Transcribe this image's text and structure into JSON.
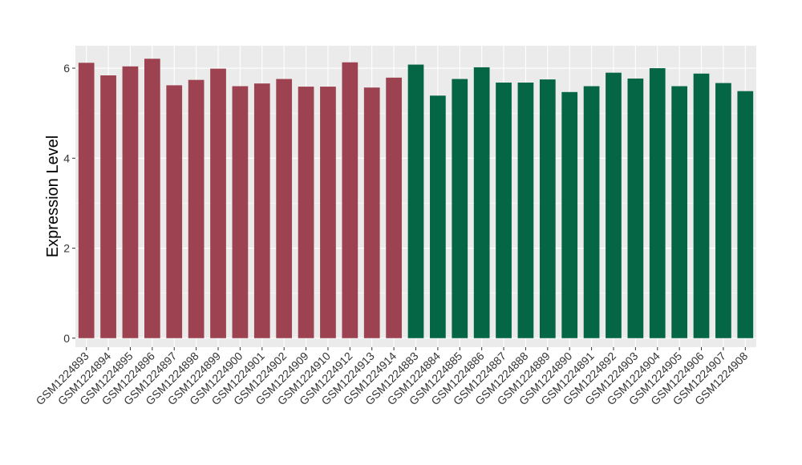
{
  "chart_data": {
    "type": "bar",
    "title": "",
    "xlabel": "",
    "ylabel": "Expression Level",
    "ylim": [
      -0.2,
      6.5
    ],
    "yticks": [
      0,
      2,
      4,
      6
    ],
    "grid": true,
    "colors": {
      "group1": "#9c4250",
      "group2": "#046645",
      "panel": "#ebebeb",
      "grid": "#ffffff"
    },
    "categories": [
      "GSM1224893",
      "GSM1224894",
      "GSM1224895",
      "GSM1224896",
      "GSM1224897",
      "GSM1224898",
      "GSM1224899",
      "GSM1224900",
      "GSM1224901",
      "GSM1224902",
      "GSM1224909",
      "GSM1224910",
      "GSM1224912",
      "GSM1224913",
      "GSM1224914",
      "GSM1224883",
      "GSM1224884",
      "GSM1224885",
      "GSM1224886",
      "GSM1224887",
      "GSM1224888",
      "GSM1224889",
      "GSM1224890",
      "GSM1224891",
      "GSM1224892",
      "GSM1224903",
      "GSM1224904",
      "GSM1224905",
      "GSM1224906",
      "GSM1224907",
      "GSM1224908"
    ],
    "values": [
      6.12,
      5.84,
      6.04,
      6.21,
      5.62,
      5.74,
      5.99,
      5.6,
      5.66,
      5.76,
      5.59,
      5.59,
      6.13,
      5.57,
      5.79,
      6.08,
      5.39,
      5.76,
      6.02,
      5.68,
      5.68,
      5.75,
      5.47,
      5.6,
      5.9,
      5.77,
      6.0,
      5.6,
      5.88,
      5.67,
      5.49
    ],
    "group_of_bar": [
      "group1",
      "group1",
      "group1",
      "group1",
      "group1",
      "group1",
      "group1",
      "group1",
      "group1",
      "group1",
      "group1",
      "group1",
      "group1",
      "group1",
      "group1",
      "group2",
      "group2",
      "group2",
      "group2",
      "group2",
      "group2",
      "group2",
      "group2",
      "group2",
      "group2",
      "group2",
      "group2",
      "group2",
      "group2",
      "group2",
      "group2"
    ]
  }
}
